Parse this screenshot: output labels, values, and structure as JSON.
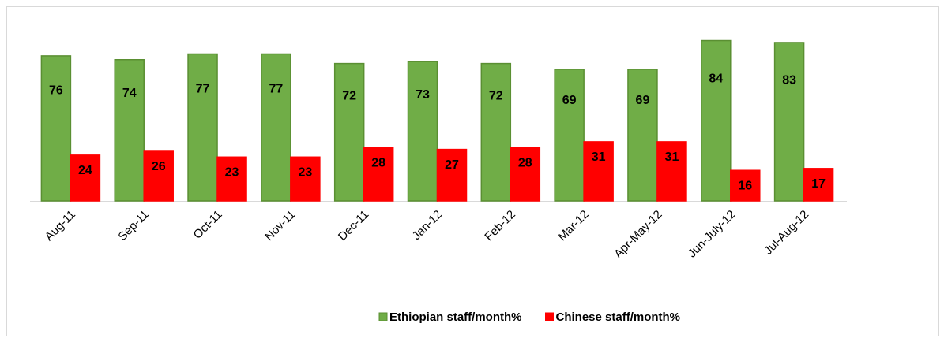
{
  "chart_data": {
    "type": "bar",
    "categories": [
      "Aug-11",
      "Sep-11",
      "Oct-11",
      "Nov-11",
      "Dec-11",
      "Jan-12",
      "Feb-12",
      "Mar-12",
      "Apr-May-12",
      "Jun-July-12",
      "Jul-Aug-12"
    ],
    "series": [
      {
        "name": "Ethiopian staff/month%",
        "color": "#70ad47",
        "values": [
          76,
          74,
          77,
          77,
          72,
          73,
          72,
          69,
          69,
          84,
          83
        ]
      },
      {
        "name": "Chinese staff/month%",
        "color": "#ff0000",
        "values": [
          24,
          26,
          23,
          23,
          28,
          27,
          28,
          31,
          31,
          16,
          17
        ]
      }
    ],
    "ylim": [
      0,
      90
    ],
    "legend": "bottom"
  }
}
